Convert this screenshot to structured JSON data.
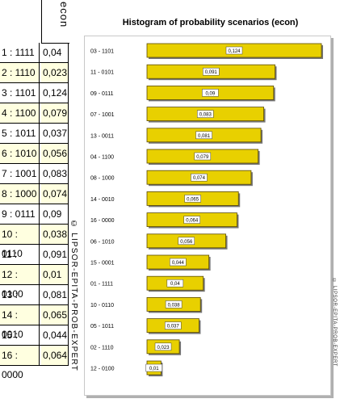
{
  "table": {
    "header": "econ",
    "rows": [
      {
        "scenario": "1 : 1111",
        "value": "0,04"
      },
      {
        "scenario": "2 : 1110",
        "value": "0,023"
      },
      {
        "scenario": "3 : 1101",
        "value": "0,124"
      },
      {
        "scenario": "4 : 1100",
        "value": "0,079"
      },
      {
        "scenario": "5 : 1011",
        "value": "0,037"
      },
      {
        "scenario": "6 : 1010",
        "value": "0,056"
      },
      {
        "scenario": "7 : 1001",
        "value": "0,083"
      },
      {
        "scenario": "8 : 1000",
        "value": "0,074"
      },
      {
        "scenario": "9 : 0111",
        "value": "0,09"
      },
      {
        "scenario": "10 : 0110",
        "value": "0,038"
      },
      {
        "scenario": "11 : 0101",
        "value": "0,091"
      },
      {
        "scenario": "12 : 0100",
        "value": "0,01"
      },
      {
        "scenario": "13 : 0011",
        "value": "0,081"
      },
      {
        "scenario": "14 : 0010",
        "value": "0,065"
      },
      {
        "scenario": "15 : 0001",
        "value": "0,044"
      },
      {
        "scenario": "16 : 0000",
        "value": "0,064"
      }
    ]
  },
  "left_copyright": "© LIPSOR-EPITA-PROB-EXPERT",
  "right_copyright": "© LIPSOR-EPITA-PROB-EXPERT",
  "chart_data": {
    "type": "bar",
    "orientation": "horizontal",
    "title": "Histogram of probability scenarios (econ)",
    "categories": [
      "03 - 1101",
      "11 - 0101",
      "09 - 0111",
      "07 - 1001",
      "13 - 0011",
      "04 - 1100",
      "08 - 1000",
      "14 - 0010",
      "16 - 0000",
      "06 - 1010",
      "15 - 0001",
      "01 - 1111",
      "10 - 0110",
      "05 - 1011",
      "02 - 1110",
      "12 - 0100"
    ],
    "values": [
      0.124,
      0.091,
      0.09,
      0.083,
      0.081,
      0.079,
      0.074,
      0.065,
      0.064,
      0.056,
      0.044,
      0.04,
      0.038,
      0.037,
      0.023,
      0.01
    ],
    "data_labels": [
      "0,124",
      "0,091",
      "0,09",
      "0,083",
      "0,081",
      "0,079",
      "0,074",
      "0,065",
      "0,064",
      "0,056",
      "0,044",
      "0,04",
      "0,038",
      "0,037",
      "0,023",
      "0,01"
    ],
    "xlim": [
      0,
      0.124
    ],
    "grid": false,
    "bar_color": "#e8d000",
    "bar_edge_color": "#5a4a00"
  }
}
